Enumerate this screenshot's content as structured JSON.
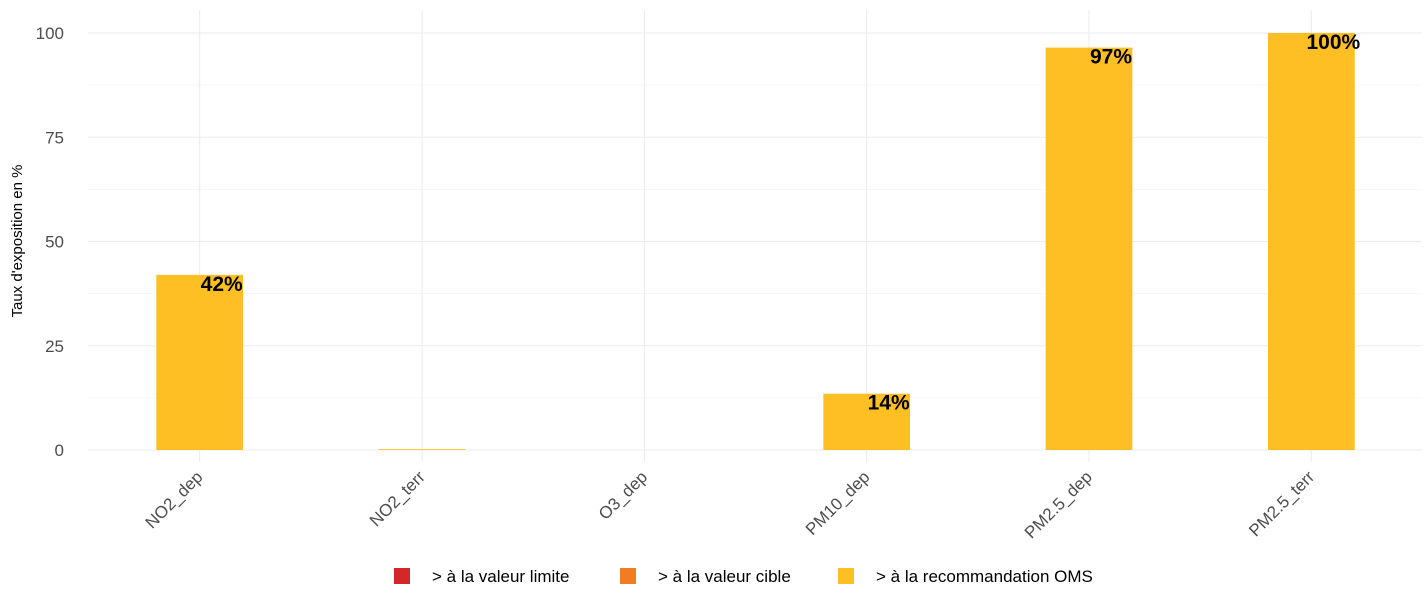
{
  "chart_data": {
    "type": "bar",
    "categories": [
      "NO2_dep",
      "NO2_terr",
      "O3_dep",
      "PM10_dep",
      "PM2.5_dep",
      "PM2.5_terr"
    ],
    "series": [
      {
        "name": "> à la valeur limite",
        "color": "#d62728",
        "values": [
          0,
          0,
          0,
          0,
          0,
          0
        ]
      },
      {
        "name": "> à la valeur cible",
        "color": "#f07d22",
        "values": [
          0,
          0,
          0,
          0,
          0,
          0
        ]
      },
      {
        "name": "> à la recommandation OMS",
        "color": "#fdbf24",
        "values": [
          42,
          0.2,
          0,
          13.5,
          96.5,
          100
        ]
      }
    ],
    "data_labels": [
      "42%",
      "",
      "",
      "14%",
      "97%",
      "100%"
    ],
    "ylabel": "Taux d'exposition en %",
    "xlabel": "",
    "ylim": [
      -3,
      105
    ],
    "yticks": [
      0,
      25,
      50,
      75,
      100
    ],
    "grid": true,
    "legend_position": "bottom"
  }
}
